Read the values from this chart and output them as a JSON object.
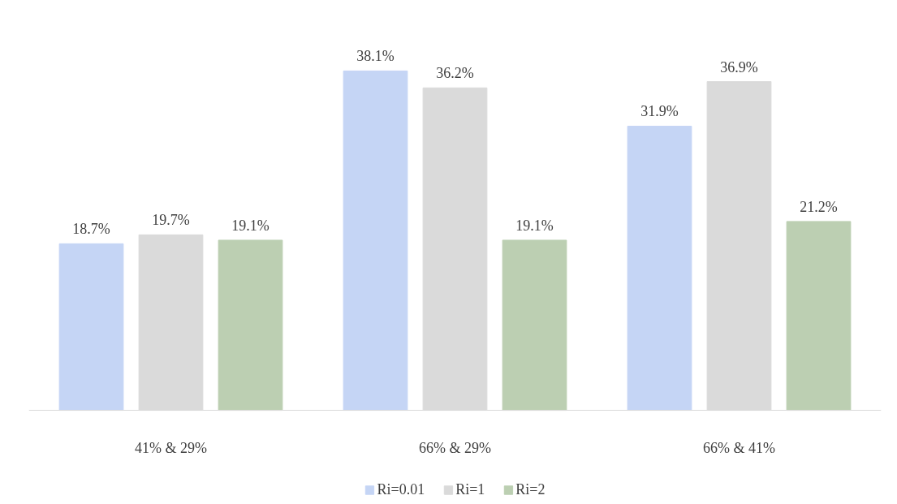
{
  "chart_data": {
    "type": "bar",
    "categories": [
      "41% & 29%",
      "66% & 29%",
      "66% & 41%"
    ],
    "series": [
      {
        "name": "Ri=0.01",
        "color": "#c5d5f5",
        "values": [
          18.7,
          38.1,
          31.9
        ],
        "value_labels": [
          "18.7%",
          "38.1%",
          "31.9%"
        ]
      },
      {
        "name": "Ri=1",
        "color": "#dadada",
        "values": [
          19.7,
          36.2,
          36.9
        ],
        "value_labels": [
          "19.7%",
          "36.2%",
          "36.9%"
        ]
      },
      {
        "name": "Ri=2",
        "color": "#bccfb2",
        "values": [
          19.1,
          19.1,
          21.2
        ],
        "value_labels": [
          "19.1%",
          "19.1%",
          "21.2%"
        ]
      }
    ],
    "tick_labels": "x",
    "grid": false,
    "legend": "bottom"
  }
}
